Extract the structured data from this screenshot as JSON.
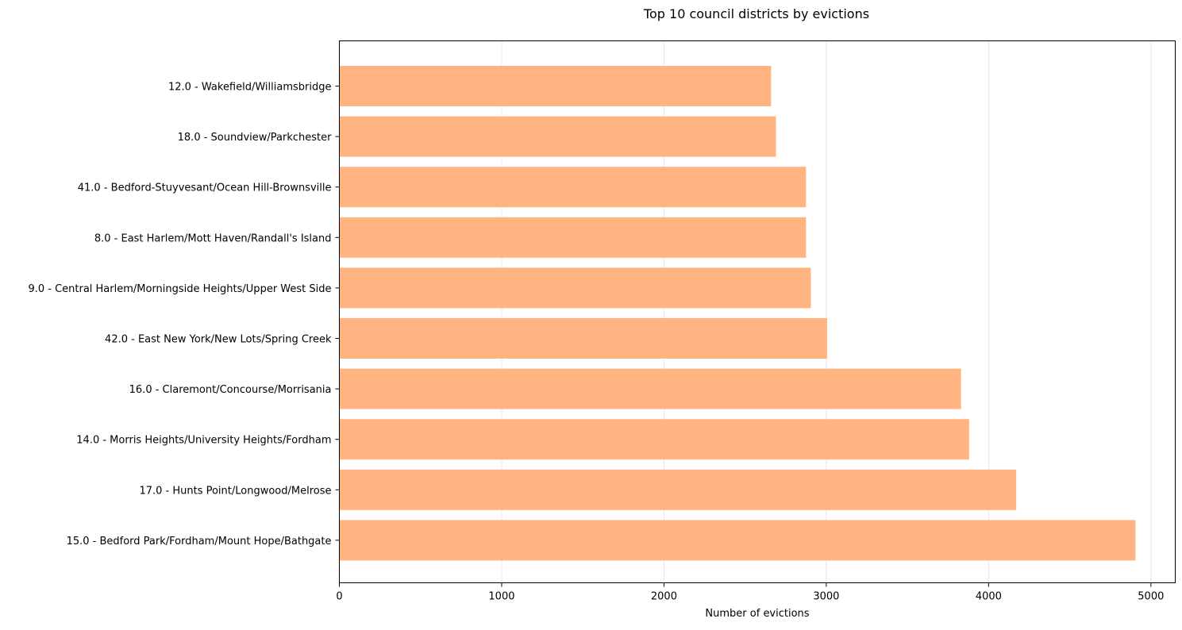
{
  "chart_data": {
    "type": "bar",
    "orientation": "horizontal",
    "title": "Top 10 council districts by evictions",
    "xlabel": "Number of evictions",
    "ylabel": "",
    "xlim": [
      0,
      5150
    ],
    "xticks": [
      0,
      1000,
      2000,
      3000,
      4000,
      5000
    ],
    "grid": "x",
    "bar_color": "#ffb482",
    "categories": [
      "12.0 - Wakefield/Williamsbridge",
      "18.0 - Soundview/Parkchester",
      "41.0 - Bedford-Stuyvesant/Ocean Hill-Brownsville",
      "8.0 - East Harlem/Mott Haven/Randall's Island",
      "9.0 - Central Harlem/Morningside Heights/Upper West Side",
      "42.0 - East New York/New Lots/Spring Creek",
      "16.0 - Claremont/Concourse/Morrisania",
      "14.0 - Morris Heights/University Heights/Fordham",
      "17.0 - Hunts Point/Longwood/Melrose",
      "15.0 - Bedford Park/Fordham/Mount Hope/Bathgate"
    ],
    "values": [
      2660,
      2690,
      2875,
      2875,
      2905,
      3005,
      3830,
      3880,
      4170,
      4905
    ]
  }
}
